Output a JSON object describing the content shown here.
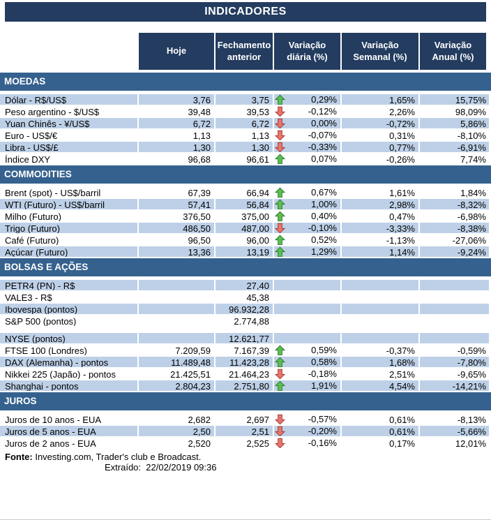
{
  "title": "INDICADORES",
  "columns": [
    "Hoje",
    "Fechamento anterior",
    "Variação diária (%)",
    "Variação Semanal (%)",
    "Variação Anual (%)"
  ],
  "colors": {
    "title_bar": "#233C5F",
    "header_box": "#233C5F",
    "section_bar": "#35618E",
    "row_shaded": "#BDD0E7",
    "arrow_up_fill": "#5CBE4E",
    "arrow_up_stroke": "#2E7D32",
    "arrow_down_fill": "#E9756C",
    "arrow_down_stroke": "#A33B35"
  },
  "sections": [
    {
      "name": "MOEDAS",
      "zebra_start": "shaded",
      "rows": [
        {
          "label": "Dólar - R$/US$",
          "hoje": "3,76",
          "fechamento": "3,75",
          "arrow": "up",
          "var_diaria": "0,29%",
          "var_semanal": "1,65%",
          "var_anual": "15,75%"
        },
        {
          "label": "Peso argentino - $/US$",
          "hoje": "39,48",
          "fechamento": "39,53",
          "arrow": "down",
          "var_diaria": "-0,12%",
          "var_semanal": "2,26%",
          "var_anual": "98,09%"
        },
        {
          "label": "Yuan Chinês - ¥/US$",
          "hoje": "6,72",
          "fechamento": "6,72",
          "arrow": "down",
          "var_diaria": "0,00%",
          "var_semanal": "-0,72%",
          "var_anual": "5,86%"
        },
        {
          "label": "Euro - US$/€",
          "hoje": "1,13",
          "fechamento": "1,13",
          "arrow": "down",
          "var_diaria": "-0,07%",
          "var_semanal": "0,31%",
          "var_anual": "-8,10%"
        },
        {
          "label": "Libra - US$/£",
          "hoje": "1,30",
          "fechamento": "1,30",
          "arrow": "down",
          "var_diaria": "-0,33%",
          "var_semanal": "0,77%",
          "var_anual": "-6,91%"
        },
        {
          "label": "Índice DXY",
          "hoje": "96,68",
          "fechamento": "96,61",
          "arrow": "up",
          "var_diaria": "0,07%",
          "var_semanal": "-0,26%",
          "var_anual": "7,74%"
        }
      ]
    },
    {
      "name": "COMMODITIES",
      "zebra_start": "plain",
      "rows": [
        {
          "label": "Brent (spot) - US$/barril",
          "hoje": "67,39",
          "fechamento": "66,94",
          "arrow": "up",
          "var_diaria": "0,67%",
          "var_semanal": "1,61%",
          "var_anual": "1,84%"
        },
        {
          "label": "WTI (Futuro) - US$/barril",
          "hoje": "57,41",
          "fechamento": "56,84",
          "arrow": "up",
          "var_diaria": "1,00%",
          "var_semanal": "2,98%",
          "var_anual": "-8,32%"
        },
        {
          "label": "Milho (Futuro)",
          "hoje": "376,50",
          "fechamento": "375,00",
          "arrow": "up",
          "var_diaria": "0,40%",
          "var_semanal": "0,47%",
          "var_anual": "-6,98%"
        },
        {
          "label": "Trigo (Futuro)",
          "hoje": "486,50",
          "fechamento": "487,00",
          "arrow": "down",
          "var_diaria": "-0,10%",
          "var_semanal": "-3,33%",
          "var_anual": "-8,38%"
        },
        {
          "label": "Café (Futuro)",
          "hoje": "96,50",
          "fechamento": "96,00",
          "arrow": "up",
          "var_diaria": "0,52%",
          "var_semanal": "-1,13%",
          "var_anual": "-27,06%"
        },
        {
          "label": "Açúcar (Futuro)",
          "hoje": "13,36",
          "fechamento": "13,19",
          "arrow": "up",
          "var_diaria": "1,29%",
          "var_semanal": "1,14%",
          "var_anual": "-9,24%"
        }
      ]
    },
    {
      "name": "BOLSAS E AÇÕES",
      "zebra_start": "shaded",
      "rows": [
        {
          "label": "PETR4 (PN) - R$",
          "hoje": "",
          "fechamento": "27,40",
          "var_diaria": "",
          "var_semanal": "",
          "var_anual": ""
        },
        {
          "label": "VALE3 - R$",
          "hoje": "",
          "fechamento": "45,38",
          "var_diaria": "",
          "var_semanal": "",
          "var_anual": ""
        },
        {
          "label": "Ibovespa (pontos)",
          "hoje": "",
          "fechamento": "96.932,28",
          "var_diaria": "",
          "var_semanal": "",
          "var_anual": ""
        },
        {
          "label": "S&P 500 (pontos)",
          "hoje": "",
          "fechamento": "2.774,88",
          "var_diaria": "",
          "var_semanal": "",
          "var_anual": ""
        },
        {
          "label": "NYSE (pontos)",
          "hoje": "",
          "fechamento": "12.621,77",
          "var_diaria": "",
          "var_semanal": "",
          "var_anual": "",
          "spacer_before": true
        },
        {
          "label": "FTSE 100 (Londres)",
          "hoje": "7.209,59",
          "fechamento": "7.167,39",
          "arrow": "up",
          "var_diaria": "0,59%",
          "var_semanal": "-0,37%",
          "var_anual": "-0,59%"
        },
        {
          "label": "DAX (Alemanha) - pontos",
          "hoje": "11.489,48",
          "fechamento": "11.423,28",
          "arrow": "up",
          "var_diaria": "0,58%",
          "var_semanal": "1,68%",
          "var_anual": "-7,80%"
        },
        {
          "label": "Nikkei 225 (Japão) - pontos",
          "hoje": "21.425,51",
          "fechamento": "21.464,23",
          "arrow": "down",
          "var_diaria": "-0,18%",
          "var_semanal": "2,51%",
          "var_anual": "-9,65%"
        },
        {
          "label": "Shanghai - pontos",
          "hoje": "2.804,23",
          "fechamento": "2.751,80",
          "arrow": "up",
          "var_diaria": "1,91%",
          "var_semanal": "4,54%",
          "var_anual": "-14,21%"
        }
      ]
    },
    {
      "name": "JUROS",
      "zebra_start": "plain",
      "rows": [
        {
          "label": "Juros de 10 anos - EUA",
          "hoje": "2,682",
          "fechamento": "2,697",
          "arrow": "down",
          "var_diaria": "-0,57%",
          "var_semanal": "0,61%",
          "var_anual": "-8,13%"
        },
        {
          "label": "Juros de 5 anos - EUA",
          "hoje": "2,50",
          "fechamento": "2,51",
          "arrow": "down",
          "var_diaria": "-0,20%",
          "var_semanal": "0,61%",
          "var_anual": "-5,66%"
        },
        {
          "label": "Juros de 2 anos - EUA",
          "hoje": "2,520",
          "fechamento": "2,525",
          "arrow": "down",
          "var_diaria": "-0,16%",
          "var_semanal": "0,17%",
          "var_anual": "12,01%"
        }
      ]
    }
  ],
  "footer": {
    "source_label": "Fonte:",
    "source_text": "Investing.com, Trader's club e Broadcast.",
    "extracted_label": "Extraído:",
    "extracted_value": "22/02/2019 09:36"
  }
}
